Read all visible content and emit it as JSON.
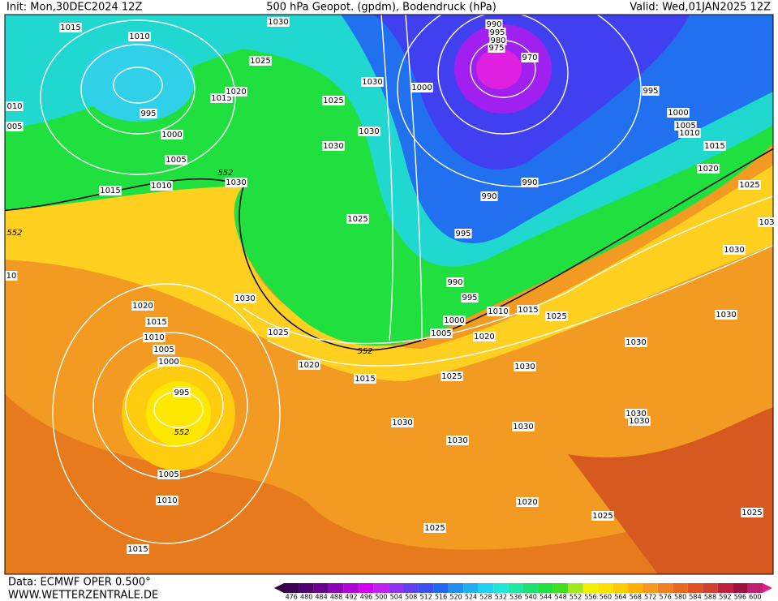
{
  "header": {
    "init": "Init: Mon,30DEC2024 12Z",
    "title": "500 hPa Geopot. (gpdm), Bodendruck (hPa)",
    "valid": "Valid: Wed,01JAN2025 12Z"
  },
  "footer": {
    "source": "Data: ECMWF OPER 0.500°",
    "site": "WWW.WETTERZENTRALE.DE"
  },
  "isobar_labels": [
    "1015",
    "1010",
    "1030",
    "1025",
    "1015",
    "1020",
    "995",
    "1000",
    "1005",
    "1010",
    "1015",
    "1025",
    "1030",
    "1000",
    "1030",
    "1030",
    "990",
    "995",
    "980",
    "975",
    "970",
    "995",
    "1000",
    "1005",
    "1010",
    "1015",
    "1020",
    "1025",
    "1030",
    "990",
    "990",
    "1025",
    "995",
    "990",
    "995",
    "1000",
    "1005",
    "1010",
    "1015",
    "1025",
    "1020",
    "1030",
    "1025",
    "1020",
    "1015",
    "1010",
    "1005",
    "1000",
    "995",
    "1020",
    "1015",
    "1025",
    "1030",
    "1030",
    "1030",
    "1030",
    "1030",
    "1030",
    "1030",
    "1030",
    "1030",
    "1005",
    "1010",
    "1015",
    "1020",
    "1025",
    "1025",
    "1025",
    "103",
    "010",
    "005",
    "10"
  ],
  "contour_labels": [
    "552",
    "552",
    "552",
    "552"
  ],
  "legend": {
    "ticks": [
      476,
      480,
      484,
      488,
      492,
      496,
      500,
      504,
      508,
      512,
      516,
      520,
      524,
      528,
      532,
      536,
      540,
      544,
      548,
      552,
      556,
      560,
      564,
      568,
      572,
      576,
      580,
      584,
      588,
      592,
      596,
      600
    ],
    "colors": [
      "#3c0050",
      "#50006e",
      "#6a0090",
      "#8a00b4",
      "#b000d8",
      "#d000f0",
      "#c020f0",
      "#9030f0",
      "#6040f0",
      "#3c50f0",
      "#2068f0",
      "#2090f0",
      "#20b0f0",
      "#20d0f0",
      "#20e8d8",
      "#20e8a0",
      "#20e070",
      "#20e040",
      "#40e020",
      "#a0e820",
      "#f0f000",
      "#ffe000",
      "#ffcc00",
      "#ffb000",
      "#f89820",
      "#f08020",
      "#e86820",
      "#e05020",
      "#d04030",
      "#c02040",
      "#a01040",
      "#c02070"
    ]
  }
}
